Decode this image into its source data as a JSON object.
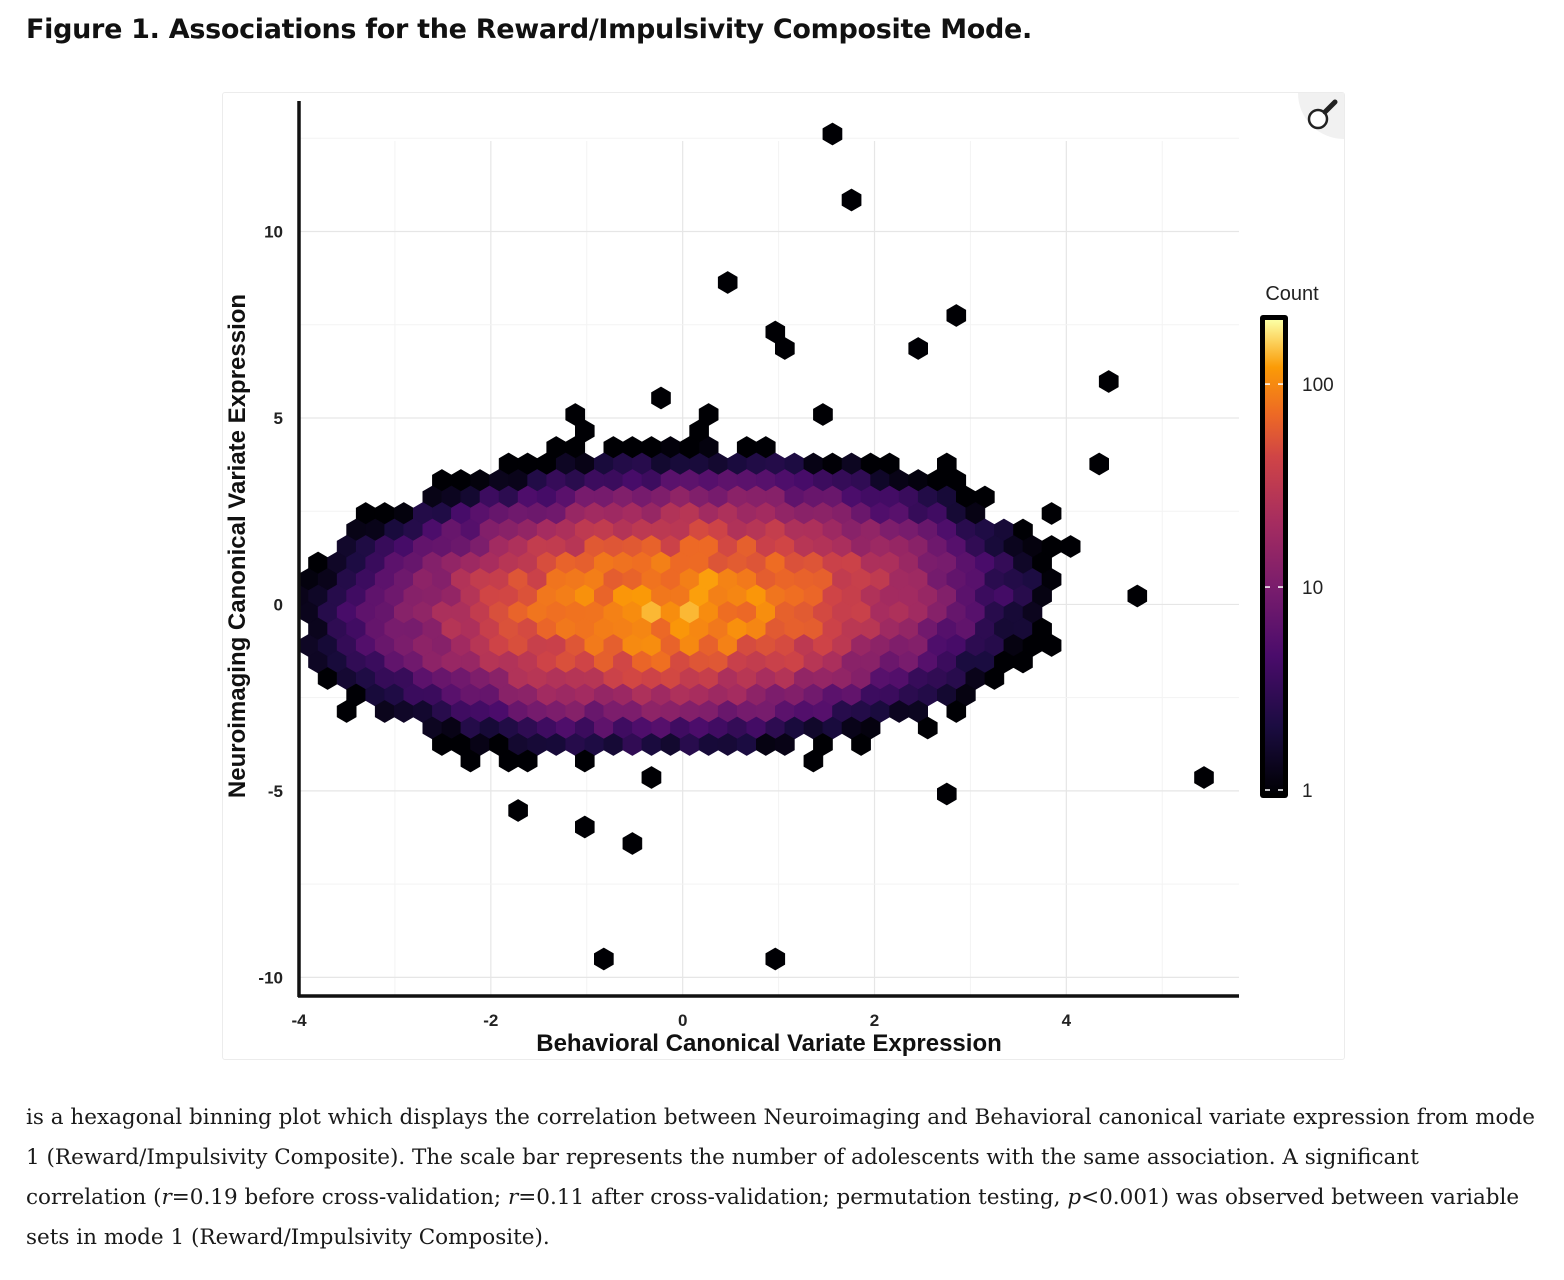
{
  "figure": {
    "title": "Figure 1. Associations for the Reward/Impulsivity Composite Mode.",
    "zoom_icon": "magnifier-icon"
  },
  "caption": {
    "part1": "is a hexagonal binning plot which displays the correlation between Neuroimaging and Behavioral canonical variate expression from mode 1 (Reward/Impulsivity Composite). The scale bar represents the number of adolescents with the same association. A significant correlation (",
    "r_sym1": "r",
    "part2": "=0.19 before cross-validation; ",
    "r_sym2": "r",
    "part3": "=0.11 after cross-validation; permutation testing, ",
    "p_sym": "p",
    "part4": "<0.001) was observed between variable sets in mode 1 (Reward/Impulsivity Composite)."
  },
  "chart_data": {
    "type": "hexbin",
    "xlabel": "Behavioral Canonical Variate Expression",
    "ylabel": "Neuroimaging Canonical Variate Expression",
    "xlim": [
      -4,
      5.8
    ],
    "ylim": [
      -10.5,
      13.5
    ],
    "x_ticks": [
      -4,
      -2,
      0,
      2,
      4
    ],
    "x_tick_labels": [
      "-4",
      "-2",
      "0",
      "2",
      "4"
    ],
    "y_ticks": [
      -10,
      -5,
      0,
      5,
      10
    ],
    "y_tick_labels": [
      "-10",
      "-5",
      "0",
      "5",
      "10"
    ],
    "grid": true,
    "legend": {
      "title": "Count",
      "scale": "log",
      "range": [
        1,
        200
      ],
      "tick_values": [
        1,
        10,
        100
      ],
      "tick_labels": [
        "1",
        "10",
        "100"
      ],
      "position": "right",
      "colormap": "inferno"
    },
    "core_distribution": {
      "center": [
        -0.1,
        0.0
      ],
      "x_sd": 1.3,
      "y_sd": 1.35,
      "peak_count": 200,
      "correlation": 0.19
    },
    "outliers": [
      [
        1.5,
        12.8
      ],
      [
        1.8,
        10.7
      ],
      [
        0.5,
        8.5
      ],
      [
        2.9,
        7.7
      ],
      [
        1.0,
        7.2
      ],
      [
        1.1,
        6.8
      ],
      [
        2.5,
        6.8
      ],
      [
        4.5,
        5.9
      ],
      [
        -0.2,
        5.5
      ],
      [
        -1.1,
        5.1
      ],
      [
        -1.0,
        4.7
      ],
      [
        0.3,
        5.1
      ],
      [
        1.5,
        5.1
      ],
      [
        0.2,
        4.7
      ],
      [
        0.1,
        4.3
      ],
      [
        -0.2,
        3.8
      ],
      [
        2.8,
        3.8
      ],
      [
        4.4,
        3.8
      ],
      [
        -2.6,
        2.1
      ],
      [
        -3.4,
        0.8
      ],
      [
        -3.0,
        1.3
      ],
      [
        -2.8,
        1.3
      ],
      [
        4.8,
        0.4
      ],
      [
        -3.6,
        -1.3
      ],
      [
        -3.2,
        -2.2
      ],
      [
        -2.1,
        -3.4
      ],
      [
        -1.9,
        -3.4
      ],
      [
        -1.7,
        -4.3
      ],
      [
        -0.4,
        -4.7
      ],
      [
        -1.8,
        -5.5
      ],
      [
        -1.1,
        -6.0
      ],
      [
        -0.6,
        -6.4
      ],
      [
        1.0,
        -3.9
      ],
      [
        1.3,
        -4.3
      ],
      [
        1.9,
        -3.8
      ],
      [
        2.7,
        -5.1
      ],
      [
        3.5,
        -1.7
      ],
      [
        3.8,
        -0.5
      ],
      [
        5.4,
        -4.7
      ],
      [
        -0.9,
        -9.4
      ],
      [
        0.9,
        -9.4
      ]
    ]
  }
}
